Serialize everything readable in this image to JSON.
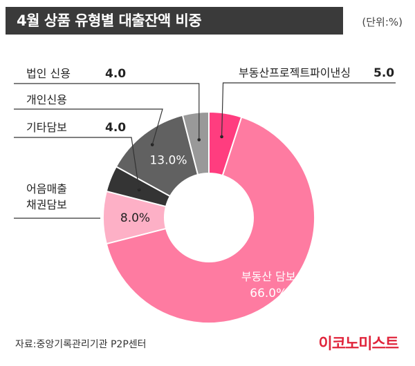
{
  "header": {
    "title": "4월 상품 유형별 대출잔액 비중",
    "unit": "(단위:%)"
  },
  "footer": {
    "source": "자료:중앙기록관리기관 P2P센터",
    "brand": "이코노미스트"
  },
  "chart_data": {
    "type": "pie",
    "title": "4월 상품 유형별 대출잔액 비중",
    "unit": "%",
    "donut": true,
    "slices": [
      {
        "label": "부동산프로젝트파이낸싱",
        "value": 5.0,
        "display": "5.0",
        "color": "#ff3d7f"
      },
      {
        "label": "부동산 담보",
        "value": 66.0,
        "display": "66.0%",
        "color": "#fe7ba1"
      },
      {
        "label": "어음매출채권담보",
        "label_lines": [
          "어음매출",
          "채권담보"
        ],
        "value": 8.0,
        "display": "8.0%",
        "color": "#fdb0c6"
      },
      {
        "label": "기타담보",
        "value": 4.0,
        "display": "4.0",
        "color": "#343434"
      },
      {
        "label": "개인신용",
        "value": 13.0,
        "display": "13.0%",
        "color": "#616161"
      },
      {
        "label": "법인 신용",
        "value": 4.0,
        "display": "4.0",
        "color": "#999999"
      }
    ]
  }
}
